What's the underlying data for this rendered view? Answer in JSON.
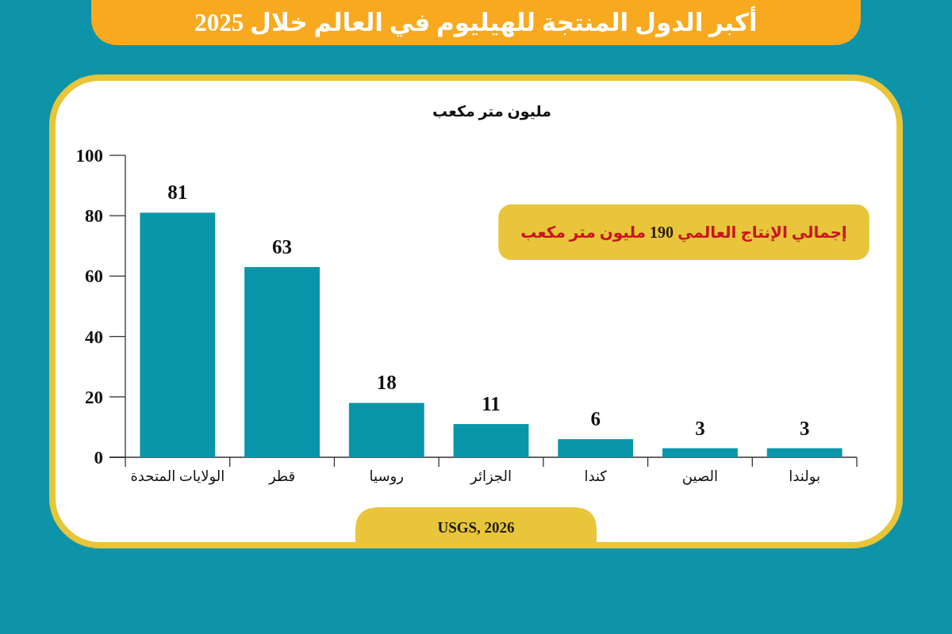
{
  "chart_data": {
    "type": "bar",
    "title": "أكبر الدول المنتجة للهيليوم في العالم خلال 2025",
    "ylabel": "مليون متر مكعب",
    "categories": [
      "الولايات المتحدة",
      "قطر",
      "روسيا",
      "الجزائر",
      "كندا",
      "الصين",
      "بولندا"
    ],
    "values": [
      81,
      63,
      18,
      11,
      6,
      3,
      3
    ],
    "color": "#0995aa",
    "ylim": [
      0,
      100
    ],
    "yticks": [
      0,
      20,
      40,
      60,
      80,
      100
    ],
    "data_labels": true,
    "annotations": [
      "إجمالي الإنتاج العالمي 190 مليون متر مكعب",
      "USGS, 2026"
    ]
  }
}
